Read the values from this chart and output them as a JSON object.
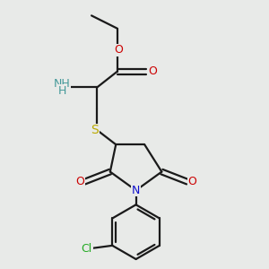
{
  "background_color": "#e8eae8",
  "colors": {
    "C": "#1a1a1a",
    "N_ring": "#1010cc",
    "O": "#cc0000",
    "S": "#bbaa00",
    "Cl": "#22aa22",
    "NH": "#449999",
    "bond": "#1a1a1a"
  },
  "bond_lw": 1.6,
  "font_size": 9
}
